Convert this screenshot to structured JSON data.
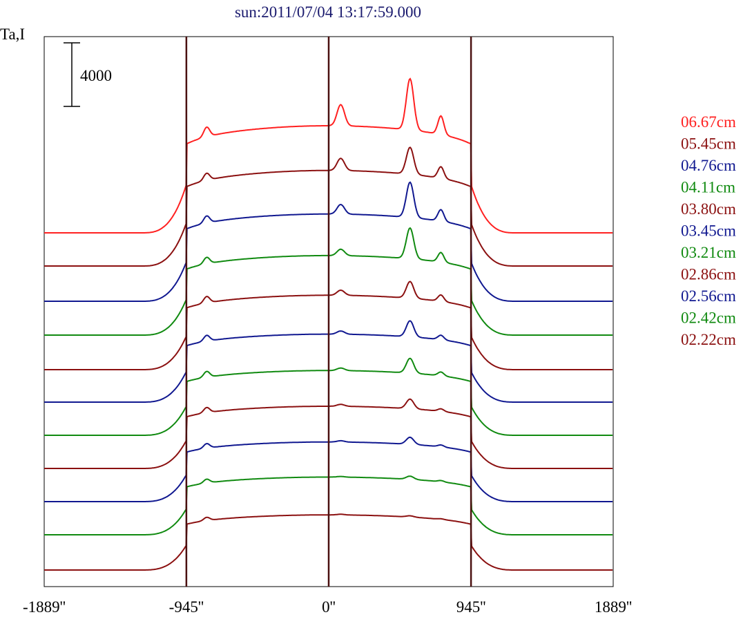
{
  "chart_data": {
    "type": "line",
    "title": "sun:2011/07/04 13:17:59.000",
    "ylabel": "Ta,I",
    "scale_bar_label": "4000",
    "scale_bar_value": 4000,
    "x_ticks": [
      {
        "value": -1889,
        "label": "-1889''"
      },
      {
        "value": -945,
        "label": "-945''"
      },
      {
        "value": 0,
        "label": "0''"
      },
      {
        "value": 945,
        "label": "945''"
      },
      {
        "value": 1889,
        "label": "1889''"
      }
    ],
    "xlim": [
      -1889,
      1889
    ],
    "reference_lines_x": [
      -945,
      0,
      945
    ],
    "colors": {
      "red": "#ff2020",
      "darkred": "#8b1010",
      "blue": "#101890",
      "green": "#108a10",
      "title": "#1a1a6e"
    },
    "series": [
      {
        "name": "06.67cm",
        "color": "#ff2020",
        "base": 0,
        "sun_level": 16700,
        "peaks": [
          [
            80,
            3300
          ],
          [
            540,
            8000
          ],
          [
            745,
            2900
          ],
          [
            -810,
            1500
          ]
        ]
      },
      {
        "name": "05.45cm",
        "color": "#8b1010",
        "base": 0,
        "sun_level": 14900,
        "peaks": [
          [
            80,
            1900
          ],
          [
            540,
            4200
          ],
          [
            745,
            1800
          ],
          [
            -810,
            1100
          ]
        ]
      },
      {
        "name": "04.76cm",
        "color": "#101890",
        "base": 0,
        "sun_level": 13600,
        "peaks": [
          [
            80,
            1500
          ],
          [
            540,
            5500
          ],
          [
            745,
            1800
          ],
          [
            -810,
            1100
          ]
        ]
      },
      {
        "name": "04.11cm",
        "color": "#108a10",
        "base": 0,
        "sun_level": 12400,
        "peaks": [
          [
            80,
            1000
          ],
          [
            540,
            4800
          ],
          [
            745,
            1500
          ],
          [
            -810,
            1000
          ]
        ]
      },
      {
        "name": "03.80cm",
        "color": "#8b1010",
        "base": 0,
        "sun_level": 11600,
        "peaks": [
          [
            80,
            800
          ],
          [
            540,
            2600
          ],
          [
            745,
            1000
          ],
          [
            -810,
            1000
          ]
        ]
      },
      {
        "name": "03.45cm",
        "color": "#101890",
        "base": 0,
        "sun_level": 10600,
        "peaks": [
          [
            80,
            500
          ],
          [
            540,
            2500
          ],
          [
            745,
            700
          ],
          [
            -810,
            900
          ]
        ]
      },
      {
        "name": "03.21cm",
        "color": "#108a10",
        "base": 0,
        "sun_level": 10100,
        "peaks": [
          [
            80,
            400
          ],
          [
            540,
            2300
          ],
          [
            745,
            600
          ],
          [
            -810,
            900
          ]
        ]
      },
      {
        "name": "02.86cm",
        "color": "#8b1010",
        "base": 0,
        "sun_level": 9700,
        "peaks": [
          [
            80,
            300
          ],
          [
            540,
            1500
          ],
          [
            745,
            400
          ],
          [
            -810,
            800
          ]
        ]
      },
      {
        "name": "02.56cm",
        "color": "#101890",
        "base": 0,
        "sun_level": 9300,
        "peaks": [
          [
            80,
            200
          ],
          [
            540,
            1100
          ],
          [
            745,
            300
          ],
          [
            -810,
            700
          ]
        ]
      },
      {
        "name": "02.42cm",
        "color": "#108a10",
        "base": 0,
        "sun_level": 9000,
        "peaks": [
          [
            80,
            100
          ],
          [
            540,
            500
          ],
          [
            745,
            200
          ],
          [
            -810,
            600
          ]
        ]
      },
      {
        "name": "02.22cm",
        "color": "#8b1010",
        "base": 0,
        "sun_level": 8600,
        "peaks": [
          [
            80,
            100
          ],
          [
            540,
            200
          ],
          [
            745,
            100
          ],
          [
            -810,
            500
          ]
        ]
      }
    ]
  }
}
